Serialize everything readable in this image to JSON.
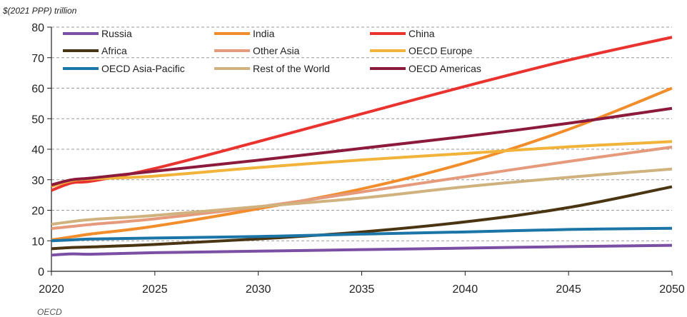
{
  "chart_data": {
    "type": "line",
    "ylabel": "$(2021 PPP) trillion",
    "xlim": [
      2020,
      2050
    ],
    "ylim": [
      0,
      80
    ],
    "x_ticks": [
      2020,
      2025,
      2030,
      2035,
      2040,
      2045,
      2050
    ],
    "y_ticks": [
      0,
      10,
      20,
      30,
      40,
      50,
      60,
      70,
      80
    ],
    "grid": "horizontal-dashed",
    "legend_position": "top",
    "footer_text": "OECD",
    "series": [
      {
        "name": "Russia",
        "color": "#7b4fa3",
        "x": [
          2020,
          2021,
          2022,
          2025,
          2030,
          2035,
          2040,
          2045,
          2050
        ],
        "y": [
          5.3,
          5.7,
          5.6,
          6.1,
          6.6,
          7.1,
          7.6,
          8.1,
          8.5
        ]
      },
      {
        "name": "India",
        "color": "#f28d2c",
        "x": [
          2020,
          2021,
          2022,
          2025,
          2030,
          2035,
          2040,
          2045,
          2050
        ],
        "y": [
          10.3,
          11.3,
          12.3,
          14.8,
          20.5,
          27.0,
          35.5,
          46.5,
          60.0
        ]
      },
      {
        "name": "China",
        "color": "#e8332f",
        "x": [
          2020,
          2021,
          2022,
          2025,
          2030,
          2035,
          2040,
          2045,
          2050
        ],
        "y": [
          26.5,
          29.0,
          29.6,
          33.7,
          42.5,
          51.6,
          60.6,
          69.2,
          76.7
        ]
      },
      {
        "name": "Africa",
        "color": "#4a3512",
        "x": [
          2020,
          2021,
          2022,
          2025,
          2030,
          2035,
          2040,
          2045,
          2050
        ],
        "y": [
          7.4,
          7.8,
          8.0,
          8.8,
          10.6,
          12.9,
          16.2,
          20.9,
          27.7
        ]
      },
      {
        "name": "Other Asia",
        "color": "#e59a7c",
        "x": [
          2020,
          2021,
          2022,
          2025,
          2030,
          2035,
          2040,
          2045,
          2050
        ],
        "y": [
          14.0,
          14.7,
          15.4,
          17.2,
          21.1,
          26.0,
          31.0,
          36.0,
          40.7
        ]
      },
      {
        "name": "OECD Europe",
        "color": "#f2b33a",
        "x": [
          2020,
          2021,
          2022,
          2025,
          2030,
          2035,
          2040,
          2045,
          2050
        ],
        "y": [
          27.8,
          29.7,
          30.3,
          31.2,
          34.0,
          36.5,
          38.6,
          40.8,
          42.5
        ]
      },
      {
        "name": "OECD Asia-Pacific",
        "color": "#1b75a6",
        "x": [
          2020,
          2021,
          2022,
          2025,
          2030,
          2035,
          2040,
          2045,
          2050
        ],
        "y": [
          10.0,
          10.3,
          10.6,
          10.9,
          11.4,
          12.2,
          12.9,
          13.7,
          14.1
        ]
      },
      {
        "name": "Rest of the World",
        "color": "#cfb27e",
        "x": [
          2020,
          2021,
          2022,
          2025,
          2030,
          2035,
          2040,
          2045,
          2050
        ],
        "y": [
          15.4,
          16.3,
          17.0,
          18.3,
          21.2,
          24.0,
          27.7,
          30.8,
          33.5
        ]
      },
      {
        "name": "OECD Americas",
        "color": "#8b1a3c",
        "x": [
          2020,
          2021,
          2022,
          2025,
          2030,
          2035,
          2040,
          2045,
          2050
        ],
        "y": [
          28.3,
          30.0,
          30.6,
          32.8,
          36.4,
          40.3,
          44.2,
          48.5,
          53.4
        ]
      }
    ]
  }
}
